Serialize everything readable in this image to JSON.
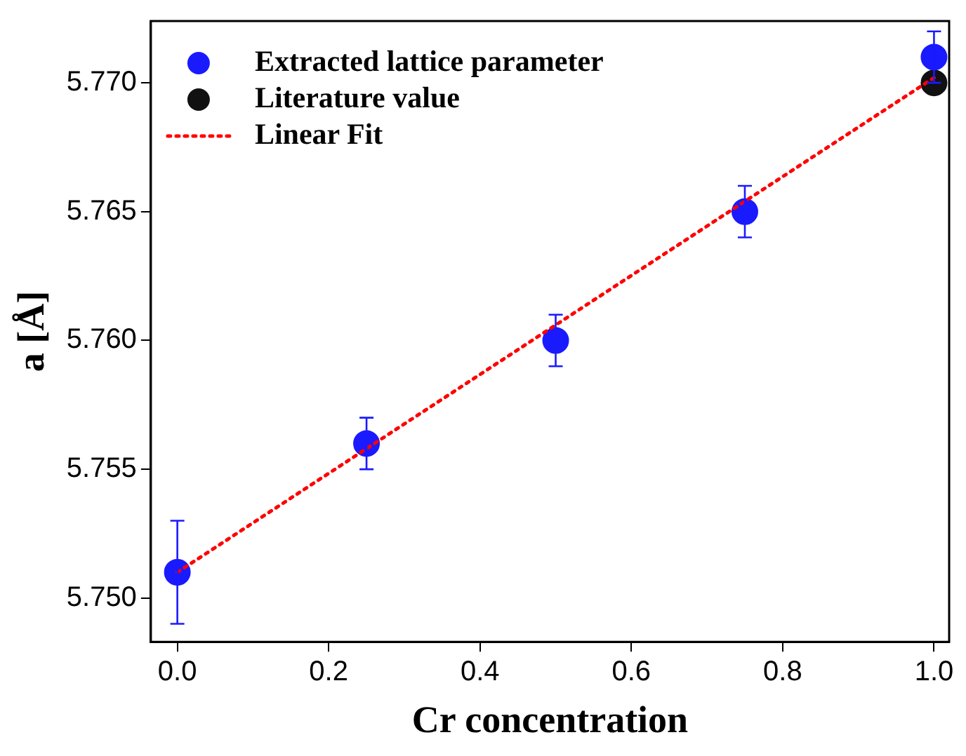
{
  "chart_data": {
    "type": "scatter",
    "xlabel": "Cr concentration",
    "ylabel": "a [Å]",
    "xlim": [
      -0.035,
      1.02
    ],
    "ylim": [
      5.7483,
      5.7724
    ],
    "xticks": [
      {
        "value": 0,
        "label": "0.0"
      },
      {
        "value": 0.2,
        "label": "0.2"
      },
      {
        "value": 0.4,
        "label": "0.4"
      },
      {
        "value": 0.6,
        "label": "0.6"
      },
      {
        "value": 0.8,
        "label": "0.8"
      },
      {
        "value": 1,
        "label": "1.0"
      }
    ],
    "yticks": [
      {
        "value": 5.75,
        "label": "5.750"
      },
      {
        "value": 5.755,
        "label": "5.755"
      },
      {
        "value": 5.76,
        "label": "5.760"
      },
      {
        "value": 5.765,
        "label": "5.765"
      },
      {
        "value": 5.77,
        "label": "5.770"
      }
    ],
    "grid": false,
    "legend": "top left",
    "marker": "circle",
    "series": [
      {
        "name": "Extracted lattice parameter",
        "type": "scatter",
        "color": "#1a1aff",
        "x": [
          0,
          0.25,
          0.5,
          0.75,
          1
        ],
        "values": [
          5.751,
          5.756,
          5.76,
          5.765,
          5.771
        ],
        "errors": [
          0.002,
          0.001,
          0.001,
          0.001,
          0.001
        ]
      },
      {
        "name": "Literature value",
        "type": "scatter",
        "color": "#111111",
        "x": [
          1
        ],
        "values": [
          5.77
        ]
      },
      {
        "name": "Linear Fit",
        "type": "line",
        "color": "#ff0000",
        "line_style": "dotted",
        "marker": "none",
        "x": [
          0,
          1
        ],
        "values": [
          5.751,
          5.7702
        ]
      }
    ]
  }
}
